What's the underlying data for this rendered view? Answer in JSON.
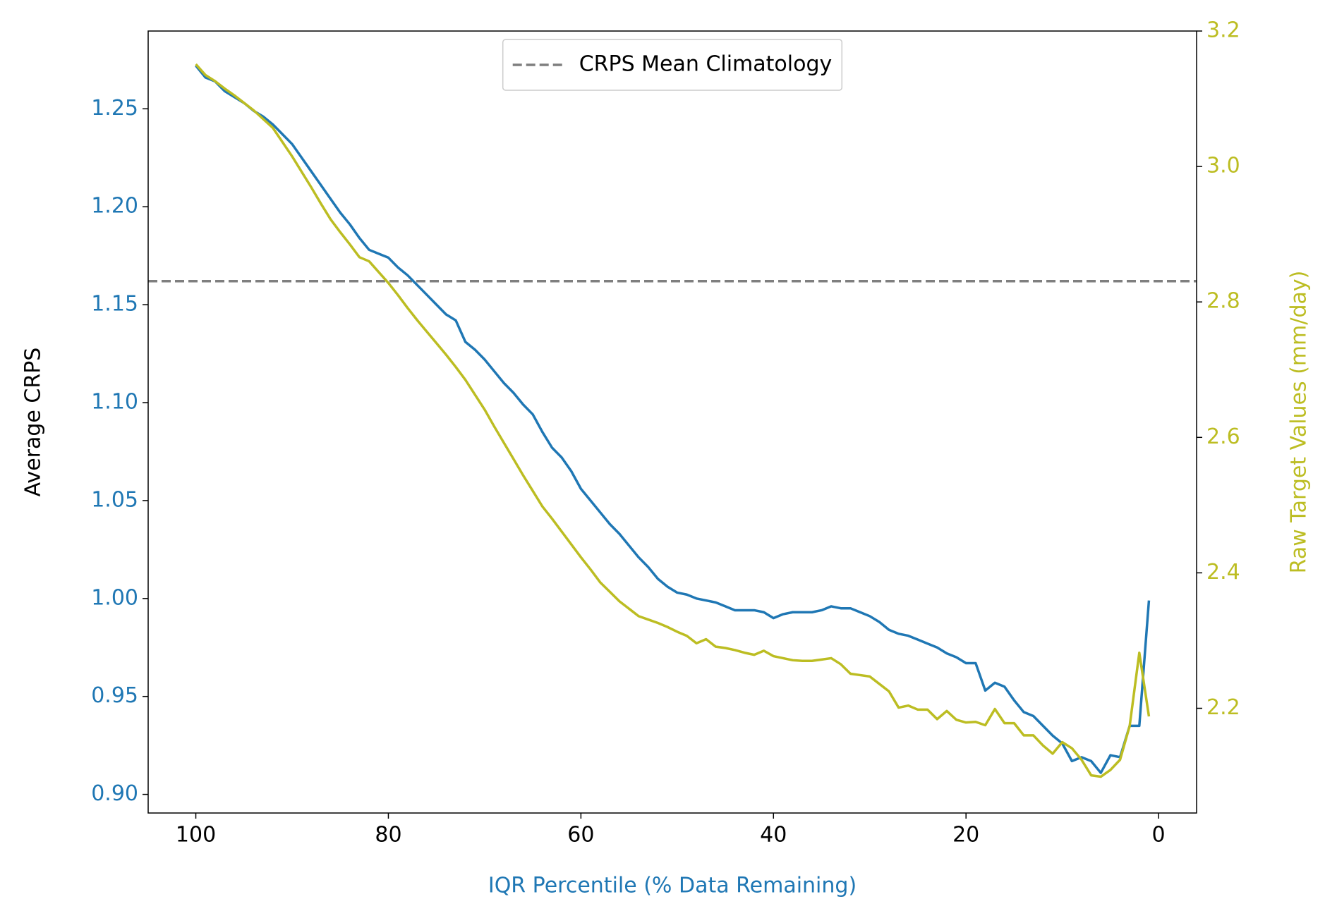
{
  "chart_data": {
    "type": "line",
    "xlabel": "IQR Percentile (% Data Remaining)",
    "ylabel": "Average CRPS",
    "y2label": "Raw Target Values (mm/day)",
    "x": [
      100,
      99,
      98,
      97,
      96,
      95,
      94,
      93,
      92,
      91,
      90,
      89,
      88,
      87,
      86,
      85,
      84,
      83,
      82,
      81,
      80,
      79,
      78,
      77,
      76,
      75,
      74,
      73,
      72,
      71,
      70,
      69,
      68,
      67,
      66,
      65,
      64,
      63,
      62,
      61,
      60,
      59,
      58,
      57,
      56,
      55,
      54,
      53,
      52,
      51,
      50,
      49,
      48,
      47,
      46,
      45,
      44,
      43,
      42,
      41,
      40,
      39,
      38,
      37,
      36,
      35,
      34,
      33,
      32,
      31,
      30,
      29,
      28,
      27,
      26,
      25,
      24,
      23,
      22,
      21,
      20,
      19,
      18,
      17,
      16,
      15,
      14,
      13,
      12,
      11,
      10,
      9,
      8,
      7,
      6,
      5,
      4,
      3,
      2,
      1
    ],
    "series": [
      {
        "color": "#1f77b4",
        "axis": "y",
        "values": [
          1.272,
          1.266,
          1.264,
          1.259,
          1.256,
          1.253,
          1.249,
          1.246,
          1.242,
          1.237,
          1.232,
          1.225,
          1.218,
          1.211,
          1.204,
          1.197,
          1.191,
          1.184,
          1.178,
          1.176,
          1.174,
          1.169,
          1.165,
          1.16,
          1.155,
          1.15,
          1.145,
          1.142,
          1.131,
          1.127,
          1.122,
          1.116,
          1.11,
          1.105,
          1.099,
          1.094,
          1.085,
          1.077,
          1.072,
          1.065,
          1.056,
          1.05,
          1.044,
          1.038,
          1.033,
          1.027,
          1.021,
          1.016,
          1.01,
          1.006,
          1.003,
          1.002,
          1.0,
          0.999,
          0.998,
          0.996,
          0.994,
          0.994,
          0.994,
          0.993,
          0.99,
          0.992,
          0.993,
          0.993,
          0.993,
          0.994,
          0.996,
          0.995,
          0.995,
          0.993,
          0.991,
          0.988,
          0.984,
          0.982,
          0.981,
          0.979,
          0.977,
          0.975,
          0.972,
          0.97,
          0.967,
          0.967,
          0.953,
          0.957,
          0.955,
          0.948,
          0.942,
          0.94,
          0.935,
          0.93,
          0.926,
          0.917,
          0.919,
          0.917,
          0.911,
          0.92,
          0.919,
          0.935,
          0.935,
          0.999
        ]
      },
      {
        "color": "#bcbd22",
        "axis": "y2",
        "values": [
          3.151,
          3.135,
          3.126,
          3.115,
          3.105,
          3.094,
          3.083,
          3.07,
          3.057,
          3.036,
          3.015,
          2.992,
          2.969,
          2.945,
          2.922,
          2.903,
          2.885,
          2.866,
          2.86,
          2.844,
          2.828,
          2.81,
          2.791,
          2.773,
          2.756,
          2.739,
          2.722,
          2.704,
          2.685,
          2.663,
          2.641,
          2.616,
          2.592,
          2.568,
          2.544,
          2.521,
          2.498,
          2.48,
          2.461,
          2.442,
          2.423,
          2.405,
          2.386,
          2.372,
          2.358,
          2.347,
          2.336,
          2.331,
          2.326,
          2.32,
          2.313,
          2.307,
          2.296,
          2.302,
          2.291,
          2.289,
          2.286,
          2.282,
          2.279,
          2.285,
          2.277,
          2.274,
          2.271,
          2.27,
          2.27,
          2.272,
          2.274,
          2.265,
          2.251,
          2.249,
          2.247,
          2.236,
          2.225,
          2.201,
          2.204,
          2.198,
          2.198,
          2.184,
          2.196,
          2.183,
          2.179,
          2.18,
          2.175,
          2.199,
          2.178,
          2.178,
          2.16,
          2.16,
          2.145,
          2.133,
          2.15,
          2.141,
          2.124,
          2.101,
          2.099,
          2.109,
          2.124,
          2.174,
          2.282,
          2.188
        ]
      }
    ],
    "hlines": [
      {
        "name": "CRPS Mean Climatology",
        "value": 1.162,
        "color": "#7f7f7f",
        "style": "dashed"
      }
    ],
    "xlim": [
      104.95,
      -3.95
    ],
    "xticks": [
      100,
      80,
      60,
      40,
      20,
      0
    ],
    "ylim": [
      0.8905,
      1.2897
    ],
    "yticks": [
      {
        "value": 0.9,
        "label": "0.90"
      },
      0.95,
      {
        "value": 1,
        "label": "1.00"
      },
      1.05,
      {
        "value": 1.1,
        "label": "1.10"
      },
      1.15,
      {
        "value": 1.2,
        "label": "1.20"
      },
      1.25
    ],
    "y2lim": [
      2.0454,
      3.2
    ],
    "y2ticks": [
      2.2,
      2.4,
      2.6,
      2.8,
      {
        "value": 3,
        "label": "3.0"
      },
      3.2
    ],
    "xlabel_color": "#1f77b4",
    "ylabel_color": "#000000",
    "y2label_color": "#bcbd22",
    "ytick_color": "#1f77b4",
    "y2tick_color": "#bcbd22",
    "legend": "upper center",
    "grid": false
  }
}
